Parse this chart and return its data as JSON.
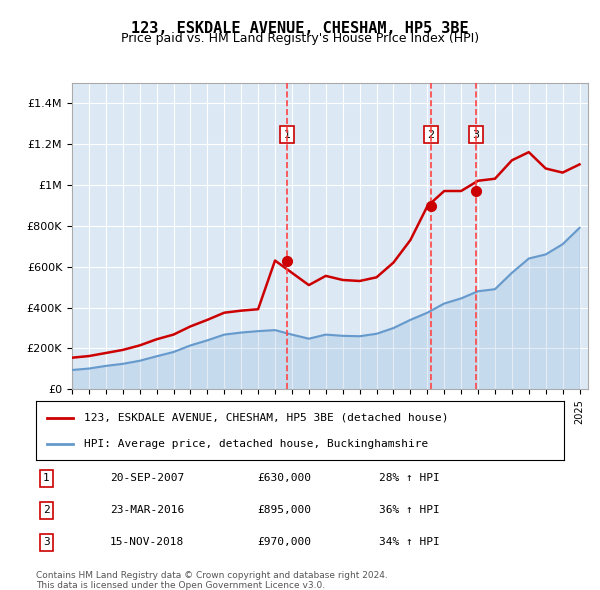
{
  "title": "123, ESKDALE AVENUE, CHESHAM, HP5 3BE",
  "subtitle": "Price paid vs. HM Land Registry's House Price Index (HPI)",
  "red_line_label": "123, ESKDALE AVENUE, CHESHAM, HP5 3BE (detached house)",
  "blue_line_label": "HPI: Average price, detached house, Buckinghamshire",
  "footer1": "Contains HM Land Registry data © Crown copyright and database right 2024.",
  "footer2": "This data is licensed under the Open Government Licence v3.0.",
  "background_color": "#dce9f5",
  "plot_bg_color": "#dce9f5",
  "red_color": "#cc0000",
  "blue_color": "#6699cc",
  "sale_marker_color": "#cc0000",
  "vline_color": "#ff4444",
  "ylim": [
    0,
    1500000
  ],
  "yticks": [
    0,
    200000,
    400000,
    600000,
    800000,
    1000000,
    1200000,
    1400000
  ],
  "ytick_labels": [
    "£0",
    "£200K",
    "£400K",
    "£600K",
    "£800K",
    "£1M",
    "£1.2M",
    "£1.4M"
  ],
  "sales": [
    {
      "year": 2007.72,
      "price": 630000,
      "label": "1",
      "pct": "28%",
      "date": "20-SEP-2007"
    },
    {
      "year": 2016.23,
      "price": 895000,
      "label": "2",
      "pct": "36%",
      "date": "23-MAR-2016"
    },
    {
      "year": 2018.88,
      "price": 970000,
      "label": "3",
      "pct": "34%",
      "date": "15-NOV-2018"
    }
  ],
  "hpi_years": [
    1995,
    1996,
    1997,
    1998,
    1999,
    2000,
    2001,
    2002,
    2003,
    2004,
    2005,
    2006,
    2007,
    2008,
    2009,
    2010,
    2011,
    2012,
    2013,
    2014,
    2015,
    2016,
    2017,
    2018,
    2019,
    2020,
    2021,
    2022,
    2023,
    2024,
    2025
  ],
  "hpi_values": [
    95000,
    102000,
    115000,
    125000,
    140000,
    162000,
    183000,
    215000,
    240000,
    268000,
    278000,
    285000,
    290000,
    268000,
    248000,
    268000,
    262000,
    260000,
    272000,
    300000,
    340000,
    375000,
    420000,
    445000,
    480000,
    490000,
    570000,
    640000,
    660000,
    710000,
    790000
  ],
  "price_years": [
    1995,
    1996,
    1997,
    1998,
    1999,
    2000,
    2001,
    2002,
    2003,
    2004,
    2005,
    2006,
    2007,
    2008,
    2009,
    2010,
    2011,
    2012,
    2013,
    2014,
    2015,
    2016,
    2017,
    2018,
    2019,
    2020,
    2021,
    2022,
    2023,
    2024,
    2025
  ],
  "price_values": [
    155000,
    163000,
    178000,
    193000,
    215000,
    245000,
    268000,
    308000,
    340000,
    375000,
    385000,
    392000,
    630000,
    570000,
    510000,
    555000,
    535000,
    530000,
    548000,
    620000,
    730000,
    895000,
    970000,
    970000,
    1020000,
    1030000,
    1120000,
    1160000,
    1080000,
    1060000,
    1100000
  ]
}
